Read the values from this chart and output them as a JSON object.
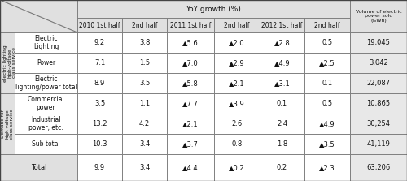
{
  "title_main": "YoY growth (%)",
  "title_right": "Volume of electric\npower sold\n(GWh)",
  "col_headers": [
    "2010 1st half",
    "2nd half",
    "2011 1st half",
    "2nd half",
    "2012 1st half",
    "2nd half"
  ],
  "row_groups": [
    {
      "group_label": "Demand for\nelectric lighting,\nhigh-voltage\nclass service",
      "rows": [
        {
          "label": "Electric\nLighting",
          "values": [
            "9.2",
            "3.8",
            "▲5.6",
            "▲2.0",
            "▲2.8",
            "0.5",
            "19,045"
          ]
        },
        {
          "label": "Power",
          "values": [
            "7.1",
            "1.5",
            "▲7.0",
            "▲2.9",
            "▲4.9",
            "▲2.5",
            "3,042"
          ]
        },
        {
          "label": "Electric\nlighting/power total",
          "values": [
            "8.9",
            "3.5",
            "▲5.8",
            "▲2.1",
            "▲3.1",
            "0.1",
            "22,087"
          ]
        }
      ]
    },
    {
      "group_label": "Demand for\nhigh-voltage\nclass service",
      "rows": [
        {
          "label": "Commercial\npower",
          "values": [
            "3.5",
            "1.1",
            "▲7.7",
            "▲3.9",
            "0.1",
            "0.5",
            "10,865"
          ]
        },
        {
          "label": "Industrial\npower, etc.",
          "values": [
            "13.2",
            "4.2",
            "▲2.1",
            "2.6",
            "2.4",
            "▲4.9",
            "30,254"
          ]
        },
        {
          "label": "Sub total",
          "values": [
            "10.3",
            "3.4",
            "▲3.7",
            "0.8",
            "1.8",
            "▲3.5",
            "41,119"
          ]
        }
      ]
    }
  ],
  "total_row": {
    "label": "Total",
    "values": [
      "9.9",
      "3.4",
      "▲4.4",
      "▲0.2",
      "0.2",
      "▲2.3",
      "63,206"
    ]
  },
  "bg_header": "#e0e0e0",
  "bg_white": "#ffffff",
  "bg_last_col": "#e8e8e8",
  "border_color": "#777777",
  "text_color": "#111111",
  "font_size": 6.0,
  "header_font_size": 6.5,
  "subheader_font_size": 5.5,
  "label_font_size": 5.5,
  "group_label_font_size": 4.2
}
